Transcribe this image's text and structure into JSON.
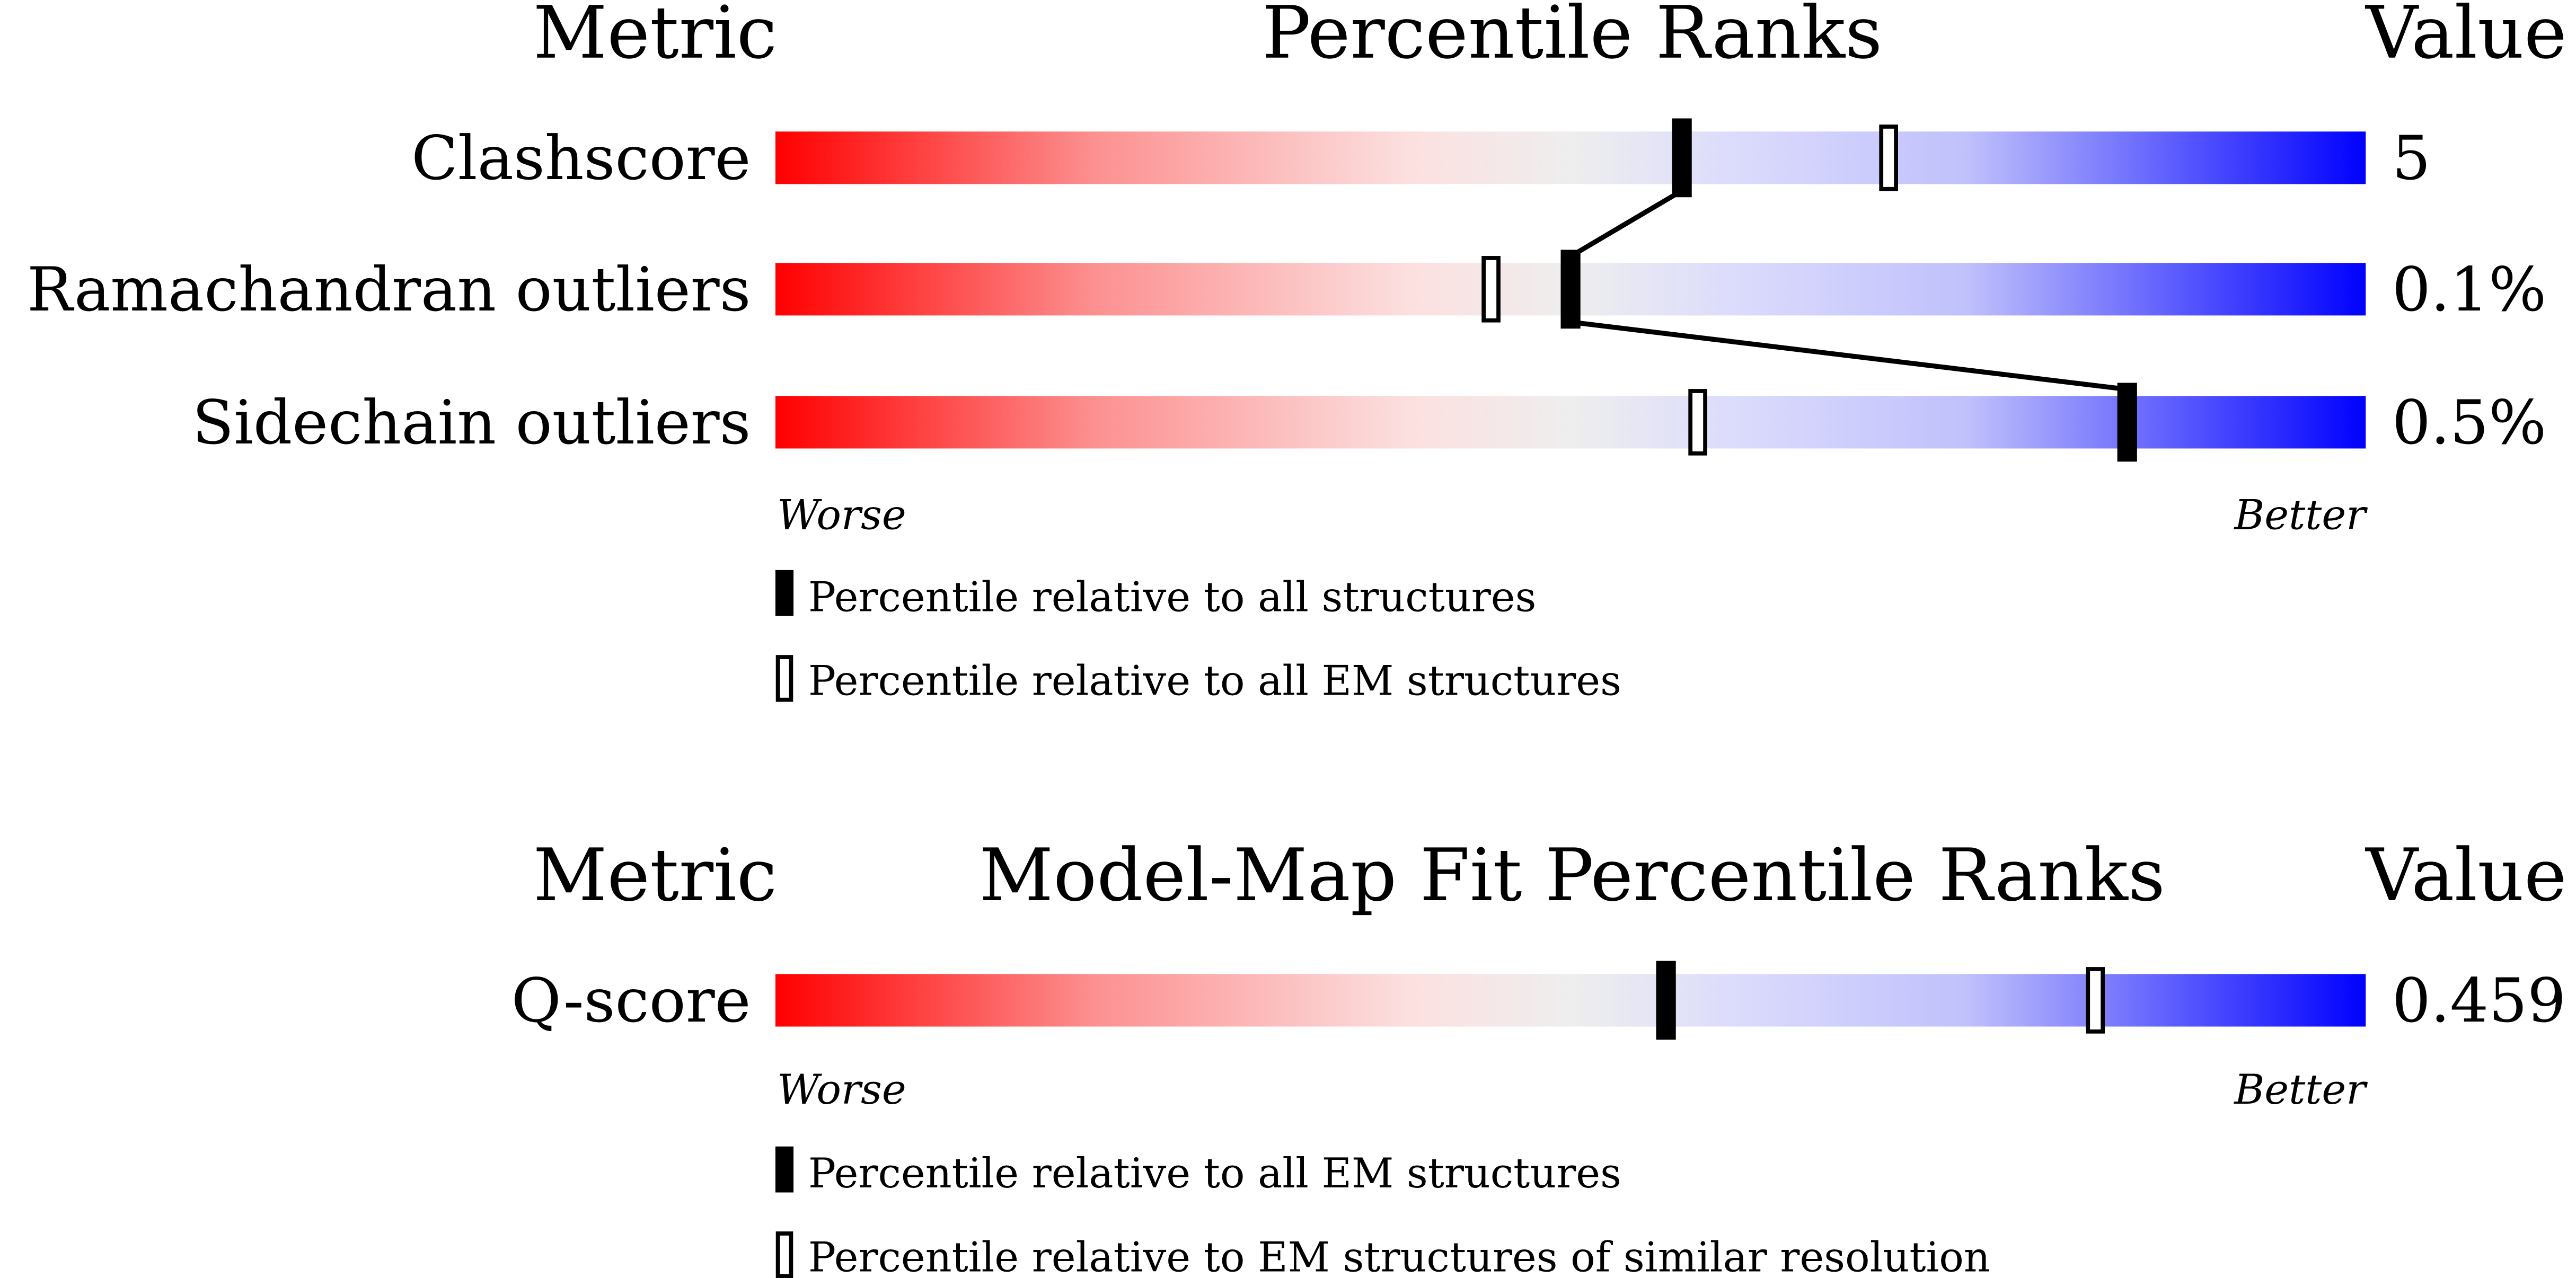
{
  "chart_data": [
    {
      "type": "percentile-bar",
      "headers": {
        "metric": "Metric",
        "title": "Percentile Ranks",
        "value": "Value"
      },
      "xlim": [
        0,
        100
      ],
      "worse_label": "Worse",
      "better_label": "Better",
      "rows": [
        {
          "metric": "Clashscore",
          "value": "5",
          "percentile_all": 57,
          "percentile_secondary": 70
        },
        {
          "metric": "Ramachandran outliers",
          "value": "0.1%",
          "percentile_all": 50,
          "percentile_secondary": 45
        },
        {
          "metric": "Sidechain outliers",
          "value": "0.5%",
          "percentile_all": 85,
          "percentile_secondary": 58
        }
      ],
      "legend": {
        "filled": "Percentile relative to all structures",
        "open": "Percentile relative to all EM structures"
      },
      "connect_filled_markers": true
    },
    {
      "type": "percentile-bar",
      "headers": {
        "metric": "Metric",
        "title": "Model-Map Fit Percentile Ranks",
        "value": "Value"
      },
      "xlim": [
        0,
        100
      ],
      "worse_label": "Worse",
      "better_label": "Better",
      "rows": [
        {
          "metric": "Q-score",
          "value": "0.459",
          "percentile_all": 56,
          "percentile_secondary": 83
        }
      ],
      "legend": {
        "filled": "Percentile relative to all EM structures",
        "open": "Percentile relative to EM structures of similar resolution"
      },
      "connect_filled_markers": false
    }
  ],
  "colors": {
    "worse": "#ff0000",
    "middle": "#eeeeee",
    "better": "#0000ff",
    "marker": "#000000"
  }
}
